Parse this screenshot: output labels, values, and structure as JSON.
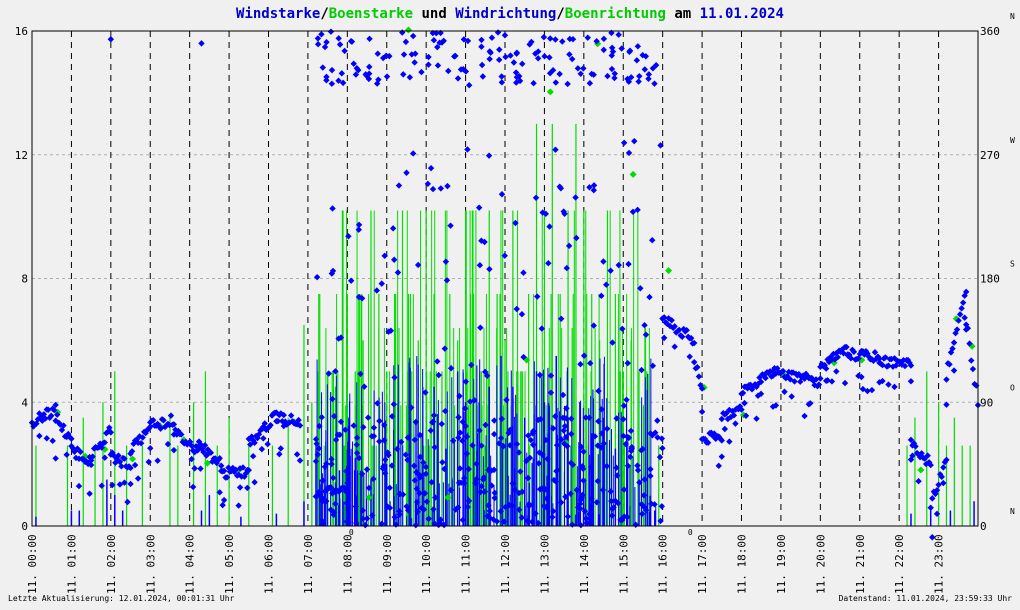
{
  "header": {
    "part1": "Windstarke",
    "slash1": "/",
    "part2": "Boenstarke",
    "und": " und ",
    "part3": "Windrichtung",
    "slash2": "/",
    "part4": "Boenrichtung",
    "am": " am ",
    "date": "11.01.2024"
  },
  "colors": {
    "wind": "#0000ff",
    "gust": "#00dd00",
    "grid": "#b0b0b0",
    "hourline": "#000000",
    "background": "#f0f0f0",
    "marker_red": "#cc0000"
  },
  "footer": {
    "left": "Letzte Aktualisierung: 12.01.2024, 00:01:31 Uhr",
    "right": "Datenstand: 11.01.2024, 23:59:33 Uhr"
  },
  "chart_data": {
    "type": "scatter",
    "ylabel_left_ticks": [
      "0",
      "4",
      "8",
      "12",
      "16"
    ],
    "ylabel_right_ticks": [
      "0",
      "90",
      "180",
      "270",
      "360"
    ],
    "compass_labels": [
      "N",
      "O",
      "S",
      "W",
      "N"
    ],
    "xlabel_ticks": [
      "11. 00:00",
      "11. 01:00",
      "11. 02:00",
      "11. 03:00",
      "11. 04:00",
      "11. 05:00",
      "11. 06:00",
      "11. 07:00",
      "11. 08:00",
      "11. 09:00",
      "11. 10:00",
      "11. 11:00",
      "11. 12:00",
      "11. 13:00",
      "11. 14:00",
      "11. 15:00",
      "11. 16:00",
      "11. 17:00",
      "11. 18:00",
      "11. 19:00",
      "11. 20:00",
      "11. 21:00",
      "11. 22:00",
      "11. 23:00"
    ],
    "ylim_speed": [
      0,
      16
    ],
    "ylim_direction": [
      0,
      360
    ],
    "xlim_hours": [
      0,
      24
    ],
    "marker_labels": [
      {
        "hour": 8.1,
        "text": "0"
      },
      {
        "hour": 16.7,
        "text": "0"
      }
    ],
    "series": [
      {
        "name": "Windstarke",
        "kind": "bars",
        "x": [
          0.1,
          1.0,
          1.2,
          1.9,
          2.1,
          2.3,
          4.3,
          4.5,
          5.3,
          6.2,
          6.9,
          7.3,
          7.8,
          8.2,
          8.6,
          9.0,
          9.3,
          9.6,
          9.9,
          10.2,
          10.5,
          10.8,
          11.0,
          11.3,
          11.6,
          11.9,
          12.2,
          12.5,
          12.8,
          13.0,
          13.3,
          13.6,
          13.9,
          14.2,
          14.5,
          14.8,
          15.1,
          15.4,
          15.8,
          22.3,
          22.8,
          23.3,
          23.9
        ],
        "y": [
          0.3,
          0.5,
          0.5,
          1.5,
          1.0,
          0.5,
          0.5,
          1.0,
          0.3,
          0.4,
          0.8,
          1.5,
          1.8,
          2.2,
          1.5,
          2.0,
          2.8,
          3.5,
          3.0,
          4.5,
          2.5,
          5.0,
          4.0,
          3.0,
          4.5,
          5.5,
          4.5,
          3.5,
          5.0,
          4.0,
          5.5,
          3.5,
          4.0,
          3.0,
          3.5,
          2.5,
          2.0,
          1.5,
          0.5,
          0.4,
          0.5,
          0.5,
          0.8
        ]
      },
      {
        "name": "Boenstarke",
        "kind": "bars",
        "x": [
          0.1,
          0.9,
          1.3,
          1.6,
          1.8,
          2.1,
          2.4,
          2.8,
          3.5,
          3.7,
          4.1,
          4.4,
          4.7,
          5.0,
          5.5,
          6.1,
          6.5,
          6.9,
          7.1,
          7.3,
          7.5,
          7.7,
          8.0,
          8.2,
          8.4,
          8.6,
          8.8,
          9.0,
          9.2,
          9.4,
          9.6,
          9.8,
          10.0,
          10.2,
          10.4,
          10.6,
          10.8,
          11.0,
          11.2,
          11.4,
          11.6,
          11.8,
          12.0,
          12.2,
          12.4,
          12.6,
          12.8,
          13.0,
          13.2,
          13.4,
          13.6,
          13.8,
          14.0,
          14.2,
          14.4,
          14.6,
          14.8,
          15.0,
          15.2,
          15.4,
          15.6,
          15.9,
          22.2,
          22.4,
          22.7,
          23.0,
          23.2,
          23.4,
          23.6,
          23.8
        ],
        "y": [
          2.6,
          2.6,
          3.5,
          2.6,
          4.0,
          5.0,
          2.6,
          2.6,
          3.5,
          2.6,
          4.0,
          5.0,
          2.6,
          3.5,
          2.6,
          2.6,
          3.5,
          6.5,
          4.0,
          7.5,
          5.0,
          4.5,
          7.5,
          5.0,
          6.0,
          10.2,
          7.5,
          5.0,
          7.5,
          10.2,
          7.5,
          6.0,
          10.2,
          7.5,
          5.0,
          7.5,
          6.0,
          10.2,
          7.5,
          5.0,
          10.2,
          7.5,
          6.0,
          10.2,
          5.0,
          7.5,
          13.0,
          10.2,
          13.0,
          7.5,
          10.2,
          13.0,
          10.2,
          7.5,
          6.0,
          10.2,
          7.5,
          5.0,
          6.0,
          5.0,
          5.0,
          2.6,
          2.6,
          3.5,
          5.0,
          4.0,
          2.6,
          3.5,
          2.6,
          2.6
        ]
      },
      {
        "name": "Windrichtung",
        "kind": "points",
        "segments": [
          {
            "from": 0.0,
            "to": 0.6,
            "start": 75,
            "end": 85
          },
          {
            "from": 0.6,
            "to": 1.0,
            "start": 80,
            "end": 60
          },
          {
            "from": 1.0,
            "to": 1.5,
            "start": 55,
            "end": 48
          },
          {
            "from": 1.5,
            "to": 2.0,
            "start": 50,
            "end": 70
          },
          {
            "from": 2.0,
            "to": 2.5,
            "start": 50,
            "end": 45
          },
          {
            "from": 2.5,
            "to": 3.0,
            "start": 55,
            "end": 70
          },
          {
            "from": 3.0,
            "to": 3.6,
            "start": 73,
            "end": 77
          },
          {
            "from": 3.6,
            "to": 4.2,
            "start": 68,
            "end": 55
          },
          {
            "from": 4.2,
            "to": 4.8,
            "start": 60,
            "end": 45
          },
          {
            "from": 4.8,
            "to": 5.5,
            "start": 38,
            "end": 40
          },
          {
            "from": 5.5,
            "to": 6.2,
            "start": 60,
            "end": 80
          },
          {
            "from": 6.2,
            "to": 6.8,
            "start": 80,
            "end": 75
          },
          {
            "from": 7.2,
            "to": 8.0,
            "start": 20,
            "end": 30
          },
          {
            "from": 16.0,
            "to": 16.8,
            "start": 150,
            "end": 135
          },
          {
            "from": 16.8,
            "to": 17.0,
            "start": 120,
            "end": 100
          },
          {
            "from": 17.0,
            "to": 17.5,
            "start": 63,
            "end": 65
          },
          {
            "from": 17.5,
            "to": 18.0,
            "start": 80,
            "end": 85
          },
          {
            "from": 18.0,
            "to": 18.8,
            "start": 100,
            "end": 110
          },
          {
            "from": 18.8,
            "to": 20.0,
            "start": 112,
            "end": 105
          },
          {
            "from": 20.0,
            "to": 20.7,
            "start": 115,
            "end": 128
          },
          {
            "from": 20.7,
            "to": 21.5,
            "start": 125,
            "end": 122
          },
          {
            "from": 21.5,
            "to": 22.3,
            "start": 120,
            "end": 117
          },
          {
            "from": 22.3,
            "to": 22.8,
            "start": 60,
            "end": 45
          },
          {
            "from": 22.8,
            "to": 23.2,
            "start": 15,
            "end": 50
          },
          {
            "from": 23.2,
            "to": 23.7,
            "start": 110,
            "end": 170
          },
          {
            "from": 23.7,
            "to": 24.0,
            "start": 150,
            "end": 90
          }
        ],
        "scatter_band": {
          "from": 7.2,
          "to": 16.0,
          "n": 600
        }
      },
      {
        "name": "Boenrichtung",
        "kind": "points",
        "x": [
          0.2,
          0.6,
          1.3,
          1.8,
          2.5,
          3.2,
          3.8,
          4.4,
          5.2,
          5.8,
          6.6,
          7.4,
          8.5,
          9.5,
          10.5,
          11.5,
          12.5,
          13.1,
          13.5,
          14.3,
          15.2,
          16.1,
          17.0,
          18.0,
          19.0,
          20.3,
          21.0,
          22.5,
          23.4,
          23.8
        ],
        "y": [
          78,
          82,
          50,
          55,
          48,
          72,
          62,
          45,
          40,
          70,
          75,
          25,
          20,
          360,
          20,
          40,
          120,
          315,
          60,
          350,
          255,
          185,
          100,
          80,
          110,
          118,
          120,
          40,
          150,
          130
        ]
      }
    ]
  }
}
